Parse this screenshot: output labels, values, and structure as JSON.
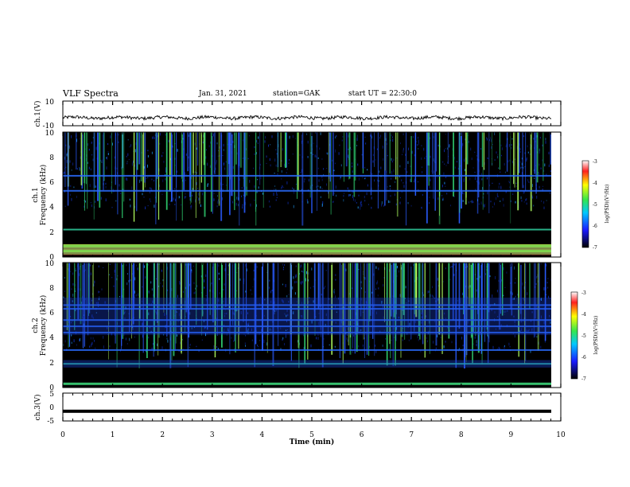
{
  "header": {
    "title": "VLF Spectra",
    "date": "Jan. 31, 2021",
    "station": "station=GAK",
    "start": "start UT =  22:30:0"
  },
  "colors": {
    "spectrogram_low": "#000000",
    "spectrogram_mid": "#1a5cff",
    "spectrogram_green": "#36e06a",
    "spectrogram_high": "#ff2a2a",
    "trace": "#000000"
  },
  "chart_data": [
    {
      "type": "line",
      "panel": "ch1-waveform",
      "ylabel": "ch.1(V)",
      "ylim": [
        -10,
        10
      ],
      "yticks": [
        "10",
        "-10"
      ],
      "xlim": [
        0,
        10
      ],
      "description": "noisy trace around -3.5 V"
    },
    {
      "type": "heatmap",
      "panel": "ch1-spectrogram",
      "ylabel_line1": "ch.1",
      "ylabel_line2": "Frequency (kHz)",
      "ylim": [
        0,
        10
      ],
      "yticks": [
        "0",
        "2",
        "4",
        "6",
        "8",
        "10"
      ],
      "xlim": [
        0,
        10
      ],
      "bands_khz": [
        0.3,
        0.5,
        0.7,
        0.9,
        2.2,
        5.3,
        6.5
      ],
      "colorbar": {
        "label": "log(PSD)(V²/Hz)",
        "range": [
          -7,
          -3
        ],
        "ticks": [
          "-3",
          "-4",
          "-5",
          "-6",
          "-7"
        ]
      }
    },
    {
      "type": "heatmap",
      "panel": "ch2-spectrogram",
      "ylabel_line1": "ch.2",
      "ylabel_line2": "Frequency (kHz)",
      "ylim": [
        0,
        10
      ],
      "yticks": [
        "0",
        "2",
        "4",
        "6",
        "8",
        "10"
      ],
      "xlim": [
        0,
        10
      ],
      "bands_khz": [
        0.3,
        1.9,
        3.0,
        4.4,
        4.9,
        5.4,
        6.3,
        6.6
      ],
      "colorbar": {
        "label": "log(PSD)(V²/Hz)",
        "range": [
          -7,
          -3
        ],
        "ticks": [
          "-3",
          "-4",
          "-5",
          "-6",
          "-7"
        ]
      }
    },
    {
      "type": "line",
      "panel": "ch3-waveform",
      "ylabel": "ch.3(V)",
      "ylim": [
        -5,
        5
      ],
      "yticks": [
        "5",
        "0",
        "-5"
      ],
      "xlim": [
        0,
        10
      ],
      "xlabel": "Time (min)",
      "xticks": [
        "0",
        "1",
        "2",
        "3",
        "4",
        "5",
        "6",
        "7",
        "8",
        "9",
        "10"
      ],
      "constant_value": -1.5
    }
  ]
}
